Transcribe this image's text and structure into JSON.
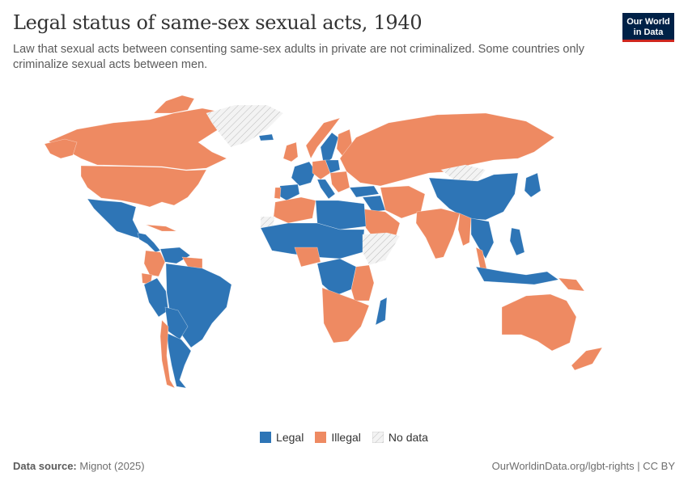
{
  "header": {
    "title": "Legal status of same-sex sexual acts, 1940",
    "subtitle": "Law that sexual acts between consenting same-sex adults in private are not criminalized. Some countries only criminalize sexual acts between men."
  },
  "logo": {
    "line1": "Our World",
    "line2": "in Data"
  },
  "colors": {
    "legal": "#2e75b6",
    "illegal": "#ee8a62",
    "no_data": "#ececec",
    "country_border": "#ffffff"
  },
  "legend": {
    "items": [
      {
        "label": "Legal",
        "color": "#2e75b6"
      },
      {
        "label": "Illegal",
        "color": "#ee8a62"
      },
      {
        "label": "No data",
        "color": "hatched"
      }
    ]
  },
  "map_data": {
    "year": "1940",
    "legal": [
      "Mexico",
      "Guatemala",
      "Honduras",
      "El Salvador",
      "Nicaragua",
      "Costa Rica",
      "Panama",
      "Venezuela",
      "Brazil",
      "Peru",
      "Bolivia",
      "Argentina",
      "Uruguay",
      "Paraguay",
      "France",
      "Belgium",
      "Netherlands",
      "Luxembourg",
      "Spain",
      "Italy",
      "Switzerland",
      "Denmark",
      "Sweden",
      "Iceland",
      "Poland",
      "Turkey",
      "Syria",
      "Iraq",
      "Lebanon",
      "Egypt",
      "Libya",
      "Niger",
      "Mali",
      "Chad",
      "Sudan",
      "Central African Republic",
      "Congo",
      "DR Congo",
      "Angola",
      "Madagascar",
      "China",
      "Japan",
      "Vietnam",
      "Laos",
      "Cambodia",
      "Thailand",
      "Indonesia",
      "Philippines"
    ],
    "illegal": [
      "Canada",
      "United States",
      "Cuba",
      "Colombia",
      "Chile",
      "Ecuador",
      "Guyana",
      "United Kingdom",
      "Ireland",
      "Germany",
      "Austria",
      "Norway",
      "Finland",
      "Soviet Union",
      "Romania",
      "Yugoslavia",
      "Greece",
      "Portugal",
      "Morocco",
      "Algeria",
      "Saudi Arabia",
      "Iran",
      "Afghanistan",
      "India",
      "Burma",
      "Malaysia",
      "Nigeria",
      "Kenya",
      "Tanzania",
      "Zambia",
      "Mozambique",
      "South Africa",
      "Namibia",
      "Botswana",
      "Australia",
      "New Zealand",
      "Papua New Guinea"
    ],
    "no_data": [
      "Greenland",
      "Western Sahara",
      "Mongolia",
      "Somalia",
      "Ethiopia"
    ]
  },
  "footer": {
    "source_label": "Data source:",
    "source_text": "Mignot (2025)",
    "credit": "OurWorldinData.org/lgbt-rights | CC BY"
  }
}
